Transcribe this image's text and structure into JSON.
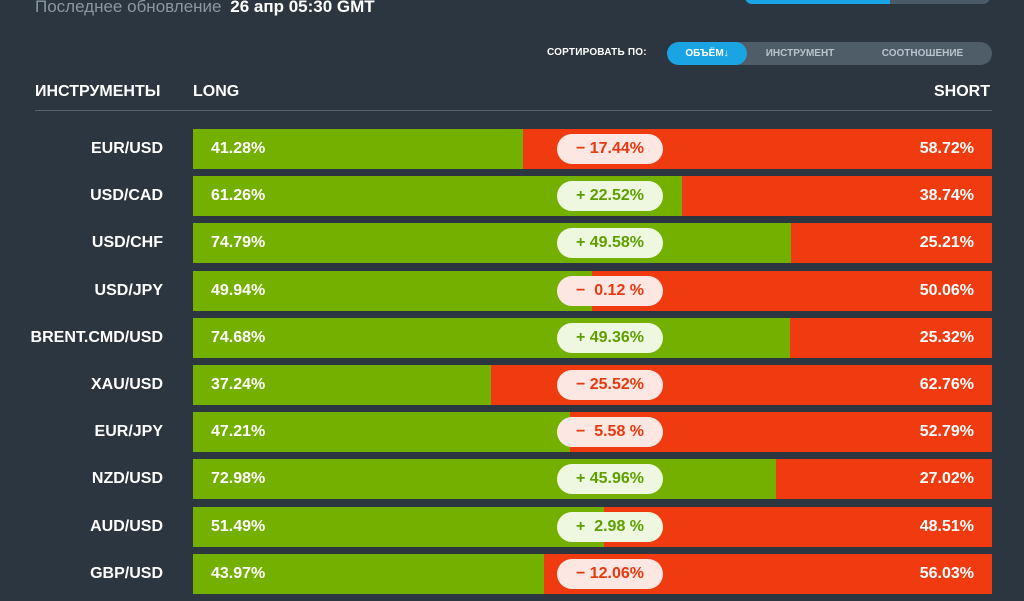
{
  "header": {
    "last_update_label": "Последнее обновление",
    "last_update_time": "26 апр 05:30 GMT"
  },
  "sort": {
    "label": "СОРТИРОВАТЬ ПО:",
    "options": [
      "ОБЪЁМ↓",
      "ИНСТРУМЕНТ",
      "СООТНОШЕНИЕ"
    ],
    "active": "ОБЪЁМ↓"
  },
  "columns": {
    "instruments": "ИНСТРУМЕНТЫ",
    "long": "LONG",
    "short": "SHORT"
  },
  "colors": {
    "long": "#74b000",
    "short": "#ef3b0f",
    "accent": "#1ba4e4",
    "background": "#2b3640"
  },
  "rows": [
    {
      "instrument": "EUR/USD",
      "long": "41.28%",
      "short": "58.72%",
      "long_pct": 41.28,
      "diff": "− 17.44%",
      "diff_sign": "neg"
    },
    {
      "instrument": "USD/CAD",
      "long": "61.26%",
      "short": "38.74%",
      "long_pct": 61.26,
      "diff": "+ 22.52%",
      "diff_sign": "pos"
    },
    {
      "instrument": "USD/CHF",
      "long": "74.79%",
      "short": "25.21%",
      "long_pct": 74.79,
      "diff": "+ 49.58%",
      "diff_sign": "pos"
    },
    {
      "instrument": "USD/JPY",
      "long": "49.94%",
      "short": "50.06%",
      "long_pct": 49.94,
      "diff": "−  0.12 %",
      "diff_sign": "neg"
    },
    {
      "instrument": "BRENT.CMD/USD",
      "long": "74.68%",
      "short": "25.32%",
      "long_pct": 74.68,
      "diff": "+ 49.36%",
      "diff_sign": "pos"
    },
    {
      "instrument": "XAU/USD",
      "long": "37.24%",
      "short": "62.76%",
      "long_pct": 37.24,
      "diff": "− 25.52%",
      "diff_sign": "neg"
    },
    {
      "instrument": "EUR/JPY",
      "long": "47.21%",
      "short": "52.79%",
      "long_pct": 47.21,
      "diff": "−  5.58 %",
      "diff_sign": "neg"
    },
    {
      "instrument": "NZD/USD",
      "long": "72.98%",
      "short": "27.02%",
      "long_pct": 72.98,
      "diff": "+ 45.96%",
      "diff_sign": "pos"
    },
    {
      "instrument": "AUD/USD",
      "long": "51.49%",
      "short": "48.51%",
      "long_pct": 51.49,
      "diff": "+  2.98 %",
      "diff_sign": "pos"
    },
    {
      "instrument": "GBP/USD",
      "long": "43.97%",
      "short": "56.03%",
      "long_pct": 43.97,
      "diff": "− 12.06%",
      "diff_sign": "neg"
    }
  ]
}
